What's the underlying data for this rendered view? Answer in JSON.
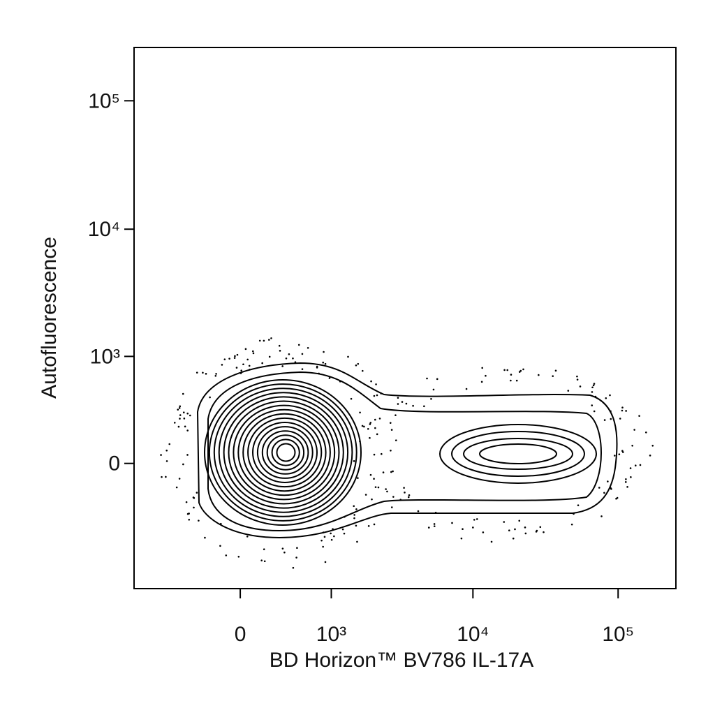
{
  "chart_data": {
    "type": "contour",
    "x_label": "BD Horizon™ BV786 IL-17A",
    "y_label": "Autofluorescence",
    "xscale": "biexponential",
    "yscale": "biexponential",
    "xlim": [
      -1300,
      250000
    ],
    "ylim": [
      -1400,
      260000
    ],
    "xticks": [
      0,
      {
        "value": 1000,
        "label": "10³"
      },
      {
        "value": 10000,
        "label": "10⁴"
      },
      {
        "value": 100000,
        "label": "10⁵"
      }
    ],
    "yticks": [
      0,
      {
        "value": 1000,
        "label": "10³"
      },
      {
        "value": 10000,
        "label": "10⁴"
      },
      {
        "value": 100000,
        "label": "10⁵"
      }
    ],
    "color": "#000000"
  }
}
